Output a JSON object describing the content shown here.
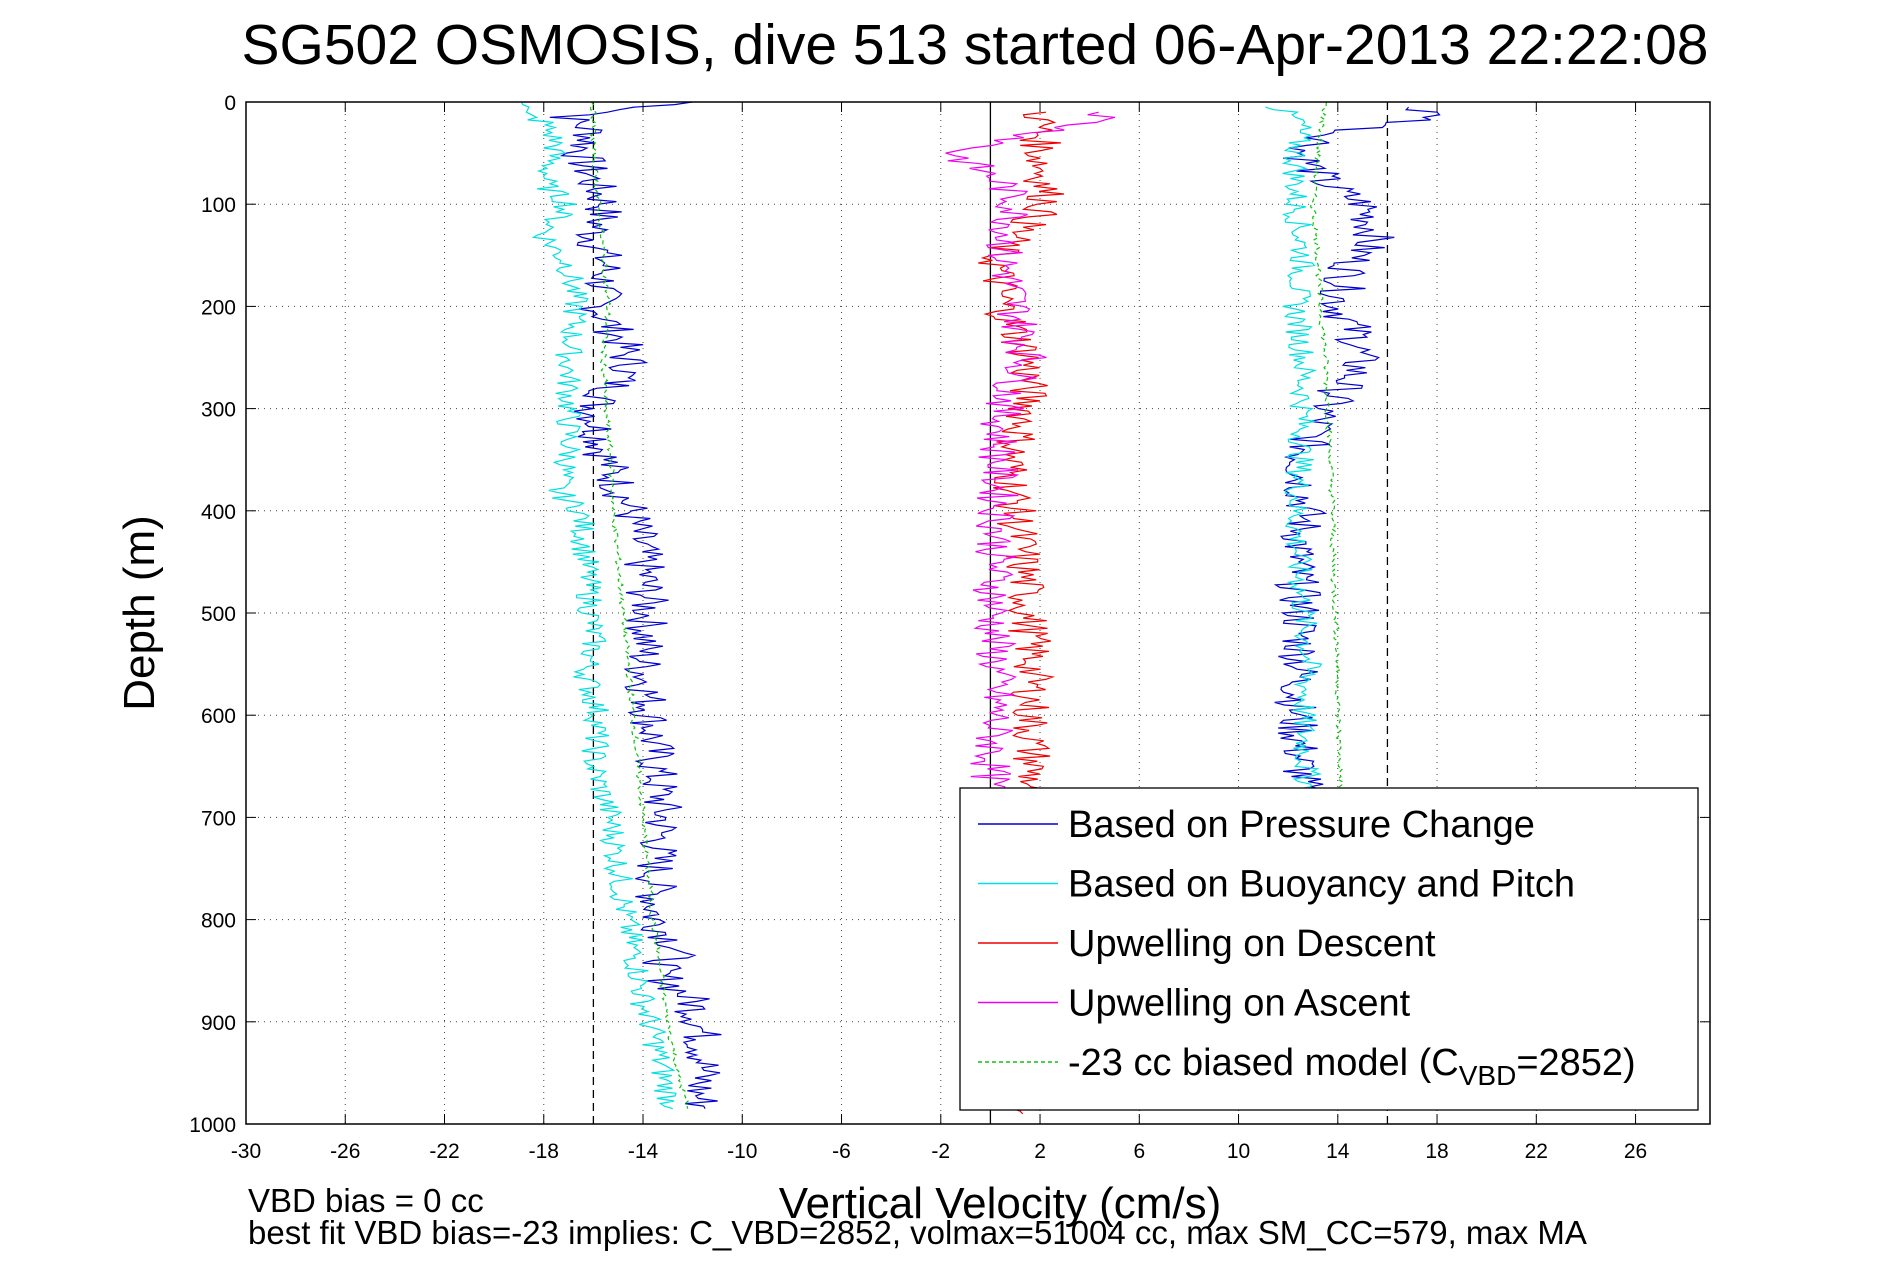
{
  "chart_data": {
    "type": "line",
    "title": "SG502 OSMOSIS, dive 513 started 06-Apr-2013 22:22:08",
    "xlabel": "Vertical Velocity (cm/s)",
    "ylabel": "Depth (m)",
    "xlim": [
      -30,
      29
    ],
    "ylim": [
      0,
      1000
    ],
    "y_reversed": true,
    "grid": true,
    "x_ticks": [
      "-30",
      "-26",
      "-22",
      "-18",
      "-14",
      "-10",
      "-6",
      "-2",
      "2",
      "6",
      "10",
      "14",
      "18",
      "22",
      "26"
    ],
    "x_tick_values": [
      -30,
      -26,
      -22,
      -18,
      -14,
      -10,
      -6,
      -2,
      2,
      6,
      10,
      14,
      18,
      22,
      26
    ],
    "y_ticks": [
      "0",
      "100",
      "200",
      "300",
      "400",
      "500",
      "600",
      "700",
      "800",
      "900",
      "1000"
    ],
    "y_tick_values": [
      0,
      100,
      200,
      300,
      400,
      500,
      600,
      700,
      800,
      900,
      1000
    ],
    "reference_lines": [
      {
        "x": -16,
        "style": "dashed"
      },
      {
        "x": 0,
        "style": "solid"
      },
      {
        "x": 16,
        "style": "dashed"
      }
    ],
    "legend_position": "bottom-right",
    "series": [
      {
        "name": "Based on Pressure Change",
        "color": "#0000d0",
        "style": "solid",
        "segments": [
          {
            "depth": [
              0,
              15,
              30,
              50,
              80,
              100,
              130,
              160,
              200,
              230,
              260,
              300,
              350,
              400,
              450,
              500,
              550,
              600,
              650,
              700,
              750,
              800,
              830,
              850,
              880,
              900,
              940,
              970,
              985
            ],
            "vel": [
              -12,
              -17,
              -16,
              -16.5,
              -16,
              -15.5,
              -16,
              -15.5,
              -15.8,
              -15,
              -14.5,
              -16,
              -15.5,
              -14.5,
              -14,
              -13.8,
              -14,
              -13.7,
              -13.5,
              -13.2,
              -13.5,
              -13.5,
              -12.5,
              -13.5,
              -12,
              -11.7,
              -11.5,
              -11.8,
              -11.5
            ]
          },
          {
            "depth": [
              5,
              15,
              30,
              50,
              80,
              100,
              130,
              160,
              200,
              230,
              260,
              300,
              350,
              400,
              450,
              500,
              550,
              600,
              650,
              700
            ],
            "vel": [
              17,
              18,
              14,
              12.5,
              13.5,
              15,
              15.5,
              14.5,
              14,
              14.8,
              14.8,
              13.5,
              12.5,
              12.7,
              12.3,
              12.5,
              12.5,
              12.3,
              12.5,
              12.7
            ]
          }
        ]
      },
      {
        "name": "Based on Buoyancy and Pitch",
        "color": "#00e0e0",
        "style": "solid",
        "segments": [
          {
            "depth": [
              0,
              10,
              20,
              40,
              80,
              100,
              130,
              160,
              200,
              250,
              300,
              350,
              380,
              400,
              450,
              500,
              530,
              560,
              600,
              650,
              700,
              750,
              800,
              850,
              880,
              920,
              970,
              985
            ],
            "vel": [
              -18.5,
              -19,
              -18,
              -17.5,
              -18,
              -17,
              -18,
              -17,
              -16.7,
              -17,
              -17,
              -17,
              -17.5,
              -16.5,
              -16.3,
              -16.1,
              -16,
              -16.3,
              -15.8,
              -16,
              -15.3,
              -15,
              -14.7,
              -14.2,
              -14,
              -13.5,
              -13,
              -12.8
            ]
          },
          {
            "depth": [
              5,
              20,
              50,
              100,
              150,
              200,
              250,
              300,
              350,
              400,
              450,
              500,
              550,
              600,
              650,
              700
            ],
            "vel": [
              11.5,
              12.5,
              12.3,
              12.3,
              12.6,
              12.3,
              12.6,
              12.6,
              12.5,
              12.3,
              12.4,
              12.6,
              12.8,
              12.6,
              12.7,
              13
            ]
          }
        ]
      },
      {
        "name": "Upwelling on Descent",
        "color": "#f00000",
        "style": "solid",
        "segments": [
          {
            "depth": [
              10,
              50,
              100,
              150,
              200,
              250,
              300,
              350,
              400,
              450,
              500,
              550,
              600,
              650,
              700
            ],
            "vel": [
              2,
              2,
              2.3,
              0.2,
              0.5,
              1.5,
              1.5,
              0.8,
              1,
              1.3,
              1.5,
              1.7,
              1.6,
              1.7,
              1.5
            ]
          },
          {
            "depth": [
              975,
              990
            ],
            "vel": [
              1,
              1.3
            ]
          }
        ]
      },
      {
        "name": "Upwelling on Ascent",
        "color": "#f000f0",
        "style": "solid",
        "segments": [
          {
            "depth": [
              10,
              20,
              50,
              80,
              100,
              150,
              200,
              250,
              300,
              350,
              400,
              450,
              500,
              550,
              600,
              650,
              700
            ],
            "vel": [
              5,
              4,
              -1.5,
              0.5,
              1,
              0.5,
              1,
              1.5,
              0.5,
              0.3,
              0.3,
              0.2,
              0.1,
              0.2,
              0.2,
              0,
              0
            ]
          }
        ]
      },
      {
        "name": "-23 cc biased model (C_VBD=2852)",
        "color": "#10c010",
        "style": "dashed",
        "segments": [
          {
            "depth": [
              0,
              50,
              100,
              150,
              200,
              250,
              300,
              350,
              400,
              450,
              500,
              550,
              600,
              650,
              700,
              750,
              800,
              850,
              900,
              950,
              985
            ],
            "vel": [
              -16,
              -16,
              -15.8,
              -15.6,
              -15.4,
              -15.6,
              -15.5,
              -15.3,
              -15.2,
              -15,
              -14.8,
              -14.6,
              -14.4,
              -14.2,
              -14,
              -13.8,
              -13.6,
              -13.3,
              -13,
              -12.6,
              -12.2
            ]
          },
          {
            "depth": [
              0,
              50,
              100,
              150,
              200,
              250,
              300,
              350,
              400,
              450,
              500,
              550,
              600,
              650,
              700
            ],
            "vel": [
              13.5,
              13.2,
              13,
              13.2,
              13.3,
              13.5,
              13.6,
              13.7,
              13.8,
              13.8,
              13.9,
              14,
              14,
              14.1,
              14.1
            ]
          }
        ]
      }
    ],
    "legend_entries": [
      {
        "label": "Based on Pressure Change",
        "color": "#0000d0",
        "style": "solid"
      },
      {
        "label": "Based on Buoyancy and Pitch",
        "color": "#00e0e0",
        "style": "solid"
      },
      {
        "label": "Upwelling on Descent",
        "color": "#f00000",
        "style": "solid"
      },
      {
        "label": "Upwelling on Ascent",
        "color": "#f000f0",
        "style": "solid"
      },
      {
        "label_main": "-23 cc biased model (C",
        "label_sub": "VBD",
        "label_tail": "=2852)",
        "color": "#10c010",
        "style": "dashed"
      }
    ]
  },
  "footer": {
    "line1": "VBD bias = 0 cc",
    "line2": "best fit VBD bias=-23 implies: C_VBD=2852, volmax=51004 cc, max SM_CC=579, max MA"
  }
}
